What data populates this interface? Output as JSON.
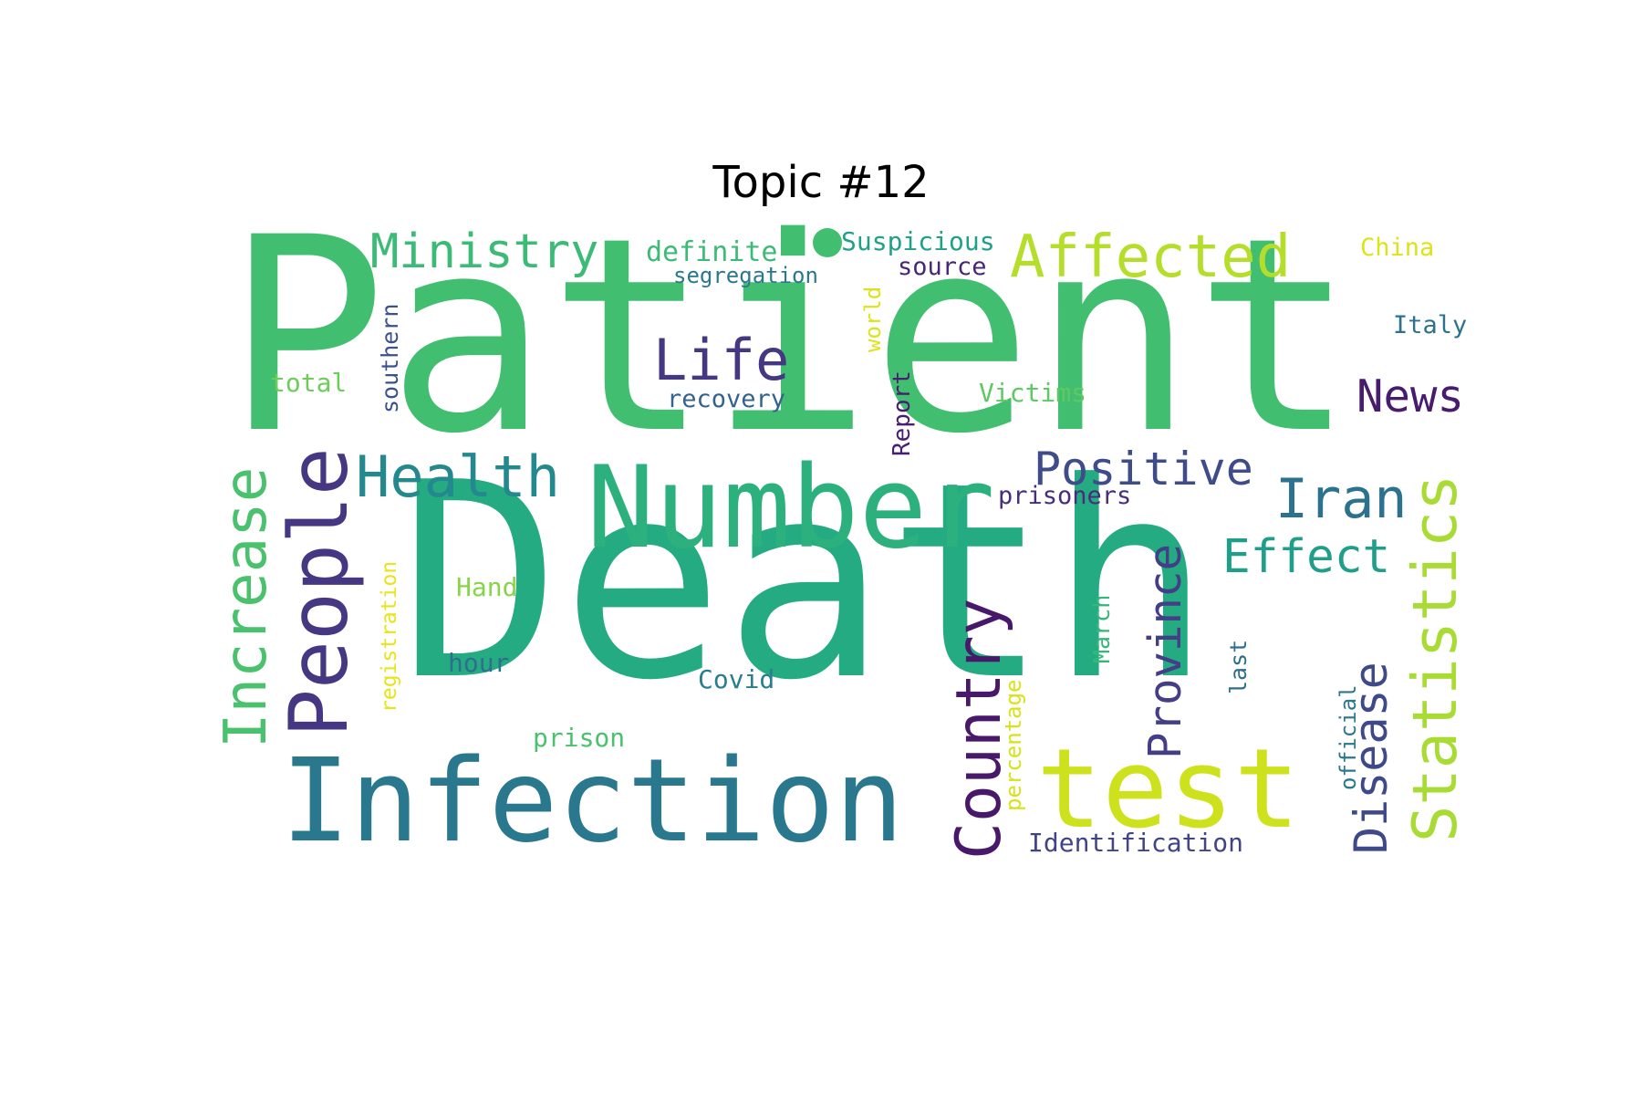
{
  "title": "Topic #12",
  "words": [
    {
      "text": "Patient",
      "color": "#42be71"
    },
    {
      "text": "Death",
      "color": "#25ab82"
    },
    {
      "text": "Number",
      "color": "#2cb17e"
    },
    {
      "text": "Infection",
      "color": "#2a788e"
    },
    {
      "text": "test",
      "color": "#cde11d"
    },
    {
      "text": "Ministry",
      "color": "#3bbb75"
    },
    {
      "text": "Affected",
      "color": "#b5de2b"
    },
    {
      "text": "Life",
      "color": "#453781"
    },
    {
      "text": "Health",
      "color": "#23898e"
    },
    {
      "text": "People",
      "color": "#453781"
    },
    {
      "text": "Increase",
      "color": "#4ac16d"
    },
    {
      "text": "Positive",
      "color": "#3e4c8a"
    },
    {
      "text": "Iran",
      "color": "#2c728e"
    },
    {
      "text": "News",
      "color": "#481b6d"
    },
    {
      "text": "Effect",
      "color": "#1f9e89"
    },
    {
      "text": "Statistics",
      "color": "#a8db34"
    },
    {
      "text": "Country",
      "color": "#48186a"
    },
    {
      "text": "Province",
      "color": "#433e85"
    },
    {
      "text": "Disease",
      "color": "#3e4989"
    },
    {
      "text": "Suspicious",
      "color": "#1fa188"
    },
    {
      "text": "definite",
      "color": "#3bbb75"
    },
    {
      "text": "segregation",
      "color": "#2a788e"
    },
    {
      "text": "source",
      "color": "#482677"
    },
    {
      "text": "China",
      "color": "#dde318"
    },
    {
      "text": "Italy",
      "color": "#2c728e"
    },
    {
      "text": "world",
      "color": "#dde318"
    },
    {
      "text": "southern",
      "color": "#3b528b"
    },
    {
      "text": "Report",
      "color": "#481f70"
    },
    {
      "text": "recovery",
      "color": "#33638d"
    },
    {
      "text": "Victims",
      "color": "#5ec962"
    },
    {
      "text": "total",
      "color": "#6ccd5a"
    },
    {
      "text": "prisoners",
      "color": "#472d7b"
    },
    {
      "text": "registration",
      "color": "#e7e419"
    },
    {
      "text": "Hand",
      "color": "#86d549"
    },
    {
      "text": "hour",
      "color": "#2d708e"
    },
    {
      "text": "Covid",
      "color": "#287d8e"
    },
    {
      "text": "March",
      "color": "#35b779"
    },
    {
      "text": "last",
      "color": "#2e6e8e"
    },
    {
      "text": "percentage",
      "color": "#d8e219"
    },
    {
      "text": "official",
      "color": "#2a788e"
    },
    {
      "text": "prison",
      "color": "#4ac16d"
    },
    {
      "text": "Identification",
      "color": "#414487"
    }
  ]
}
